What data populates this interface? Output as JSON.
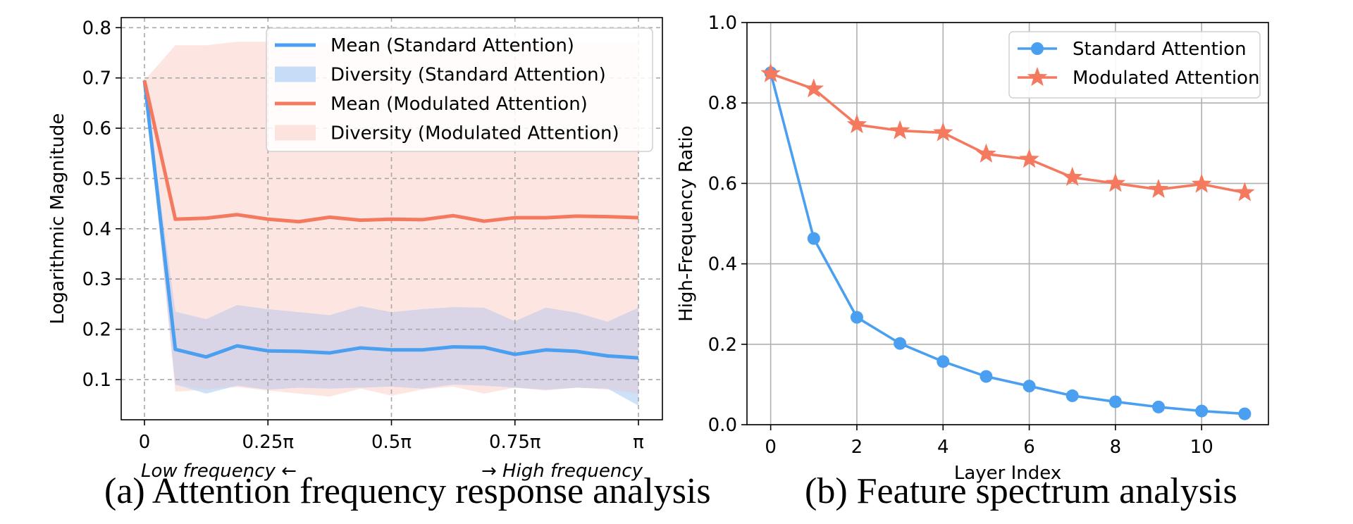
{
  "chart_data": [
    {
      "type": "line",
      "panel": "a",
      "caption": "(a) Attention frequency response analysis",
      "xlabel": "",
      "ylabel": "Logarithmic Magnitude",
      "xlim": [
        0,
        1
      ],
      "ylim": [
        0.02,
        0.82
      ],
      "grid": "dashed",
      "legend_position": "top-right",
      "xticks": [
        0,
        0.25,
        0.5,
        0.75,
        1.0
      ],
      "xtick_labels": [
        "0",
        "0.25π",
        "0.5π",
        "0.75π",
        "π"
      ],
      "yticks": [
        0.1,
        0.2,
        0.3,
        0.4,
        0.5,
        0.6,
        0.7,
        0.8
      ],
      "ytick_labels": [
        "0.1",
        "0.2",
        "0.3",
        "0.4",
        "0.5",
        "0.6",
        "0.7",
        "0.8"
      ],
      "annotation_low": "Low frequency ←",
      "annotation_high": "→ High frequency",
      "x": [
        0,
        0.0625,
        0.125,
        0.1875,
        0.25,
        0.3125,
        0.375,
        0.4375,
        0.5,
        0.5625,
        0.625,
        0.6875,
        0.75,
        0.8125,
        0.875,
        0.9375,
        1.0
      ],
      "series": [
        {
          "name": "Mean (Standard Attention)",
          "band_name": "Diversity (Standard Attention)",
          "color": "#4a9ff0",
          "band_color": "#c7dcf6",
          "values": [
            0.695,
            0.16,
            0.145,
            0.167,
            0.157,
            0.156,
            0.153,
            0.163,
            0.159,
            0.159,
            0.165,
            0.164,
            0.15,
            0.159,
            0.156,
            0.147,
            0.143
          ],
          "upper": [
            0.695,
            0.235,
            0.22,
            0.248,
            0.24,
            0.234,
            0.228,
            0.246,
            0.234,
            0.24,
            0.244,
            0.243,
            0.216,
            0.243,
            0.233,
            0.215,
            0.243
          ],
          "lower": [
            0.695,
            0.09,
            0.072,
            0.088,
            0.08,
            0.084,
            0.082,
            0.084,
            0.086,
            0.082,
            0.09,
            0.088,
            0.084,
            0.08,
            0.084,
            0.082,
            0.048
          ]
        },
        {
          "name": "Mean (Modulated Attention)",
          "band_name": "Diversity (Modulated Attention)",
          "color": "#f4795e",
          "band_color": "#fde3de",
          "values": [
            0.695,
            0.419,
            0.421,
            0.428,
            0.419,
            0.414,
            0.423,
            0.417,
            0.419,
            0.418,
            0.426,
            0.415,
            0.422,
            0.422,
            0.425,
            0.424,
            0.422
          ],
          "upper": [
            0.695,
            0.765,
            0.765,
            0.772,
            0.772,
            0.77,
            0.77,
            0.77,
            0.77,
            0.768,
            0.77,
            0.77,
            0.77,
            0.77,
            0.77,
            0.77,
            0.77
          ],
          "lower": [
            0.695,
            0.076,
            0.08,
            0.085,
            0.078,
            0.072,
            0.066,
            0.082,
            0.068,
            0.08,
            0.086,
            0.072,
            0.084,
            0.078,
            0.084,
            0.08,
            0.072
          ]
        }
      ]
    },
    {
      "type": "line",
      "panel": "b",
      "caption": "(b) Feature spectrum analysis",
      "xlabel": "Layer Index",
      "ylabel": "High-Frequency Ratio",
      "xlim": [
        -0.55,
        11.55
      ],
      "ylim": [
        0.0,
        1.0
      ],
      "grid": "solid",
      "legend_position": "top-right",
      "xticks": [
        0,
        2,
        4,
        6,
        8,
        10
      ],
      "xtick_labels": [
        "0",
        "2",
        "4",
        "6",
        "8",
        "10"
      ],
      "yticks": [
        0.0,
        0.2,
        0.4,
        0.6,
        0.8,
        1.0
      ],
      "ytick_labels": [
        "0.0",
        "0.2",
        "0.4",
        "0.6",
        "0.8",
        "1.0"
      ],
      "x": [
        0,
        1,
        2,
        3,
        4,
        5,
        6,
        7,
        8,
        9,
        10,
        11
      ],
      "series": [
        {
          "name": "Standard Attention",
          "marker": "circle",
          "color": "#4a9ff0",
          "values": [
            0.875,
            0.463,
            0.267,
            0.202,
            0.157,
            0.12,
            0.096,
            0.072,
            0.057,
            0.044,
            0.034,
            0.027
          ]
        },
        {
          "name": "Modulated Attention",
          "marker": "star",
          "color": "#f4795e",
          "values": [
            0.873,
            0.835,
            0.746,
            0.731,
            0.726,
            0.673,
            0.66,
            0.615,
            0.6,
            0.585,
            0.598,
            0.577
          ]
        }
      ]
    }
  ]
}
